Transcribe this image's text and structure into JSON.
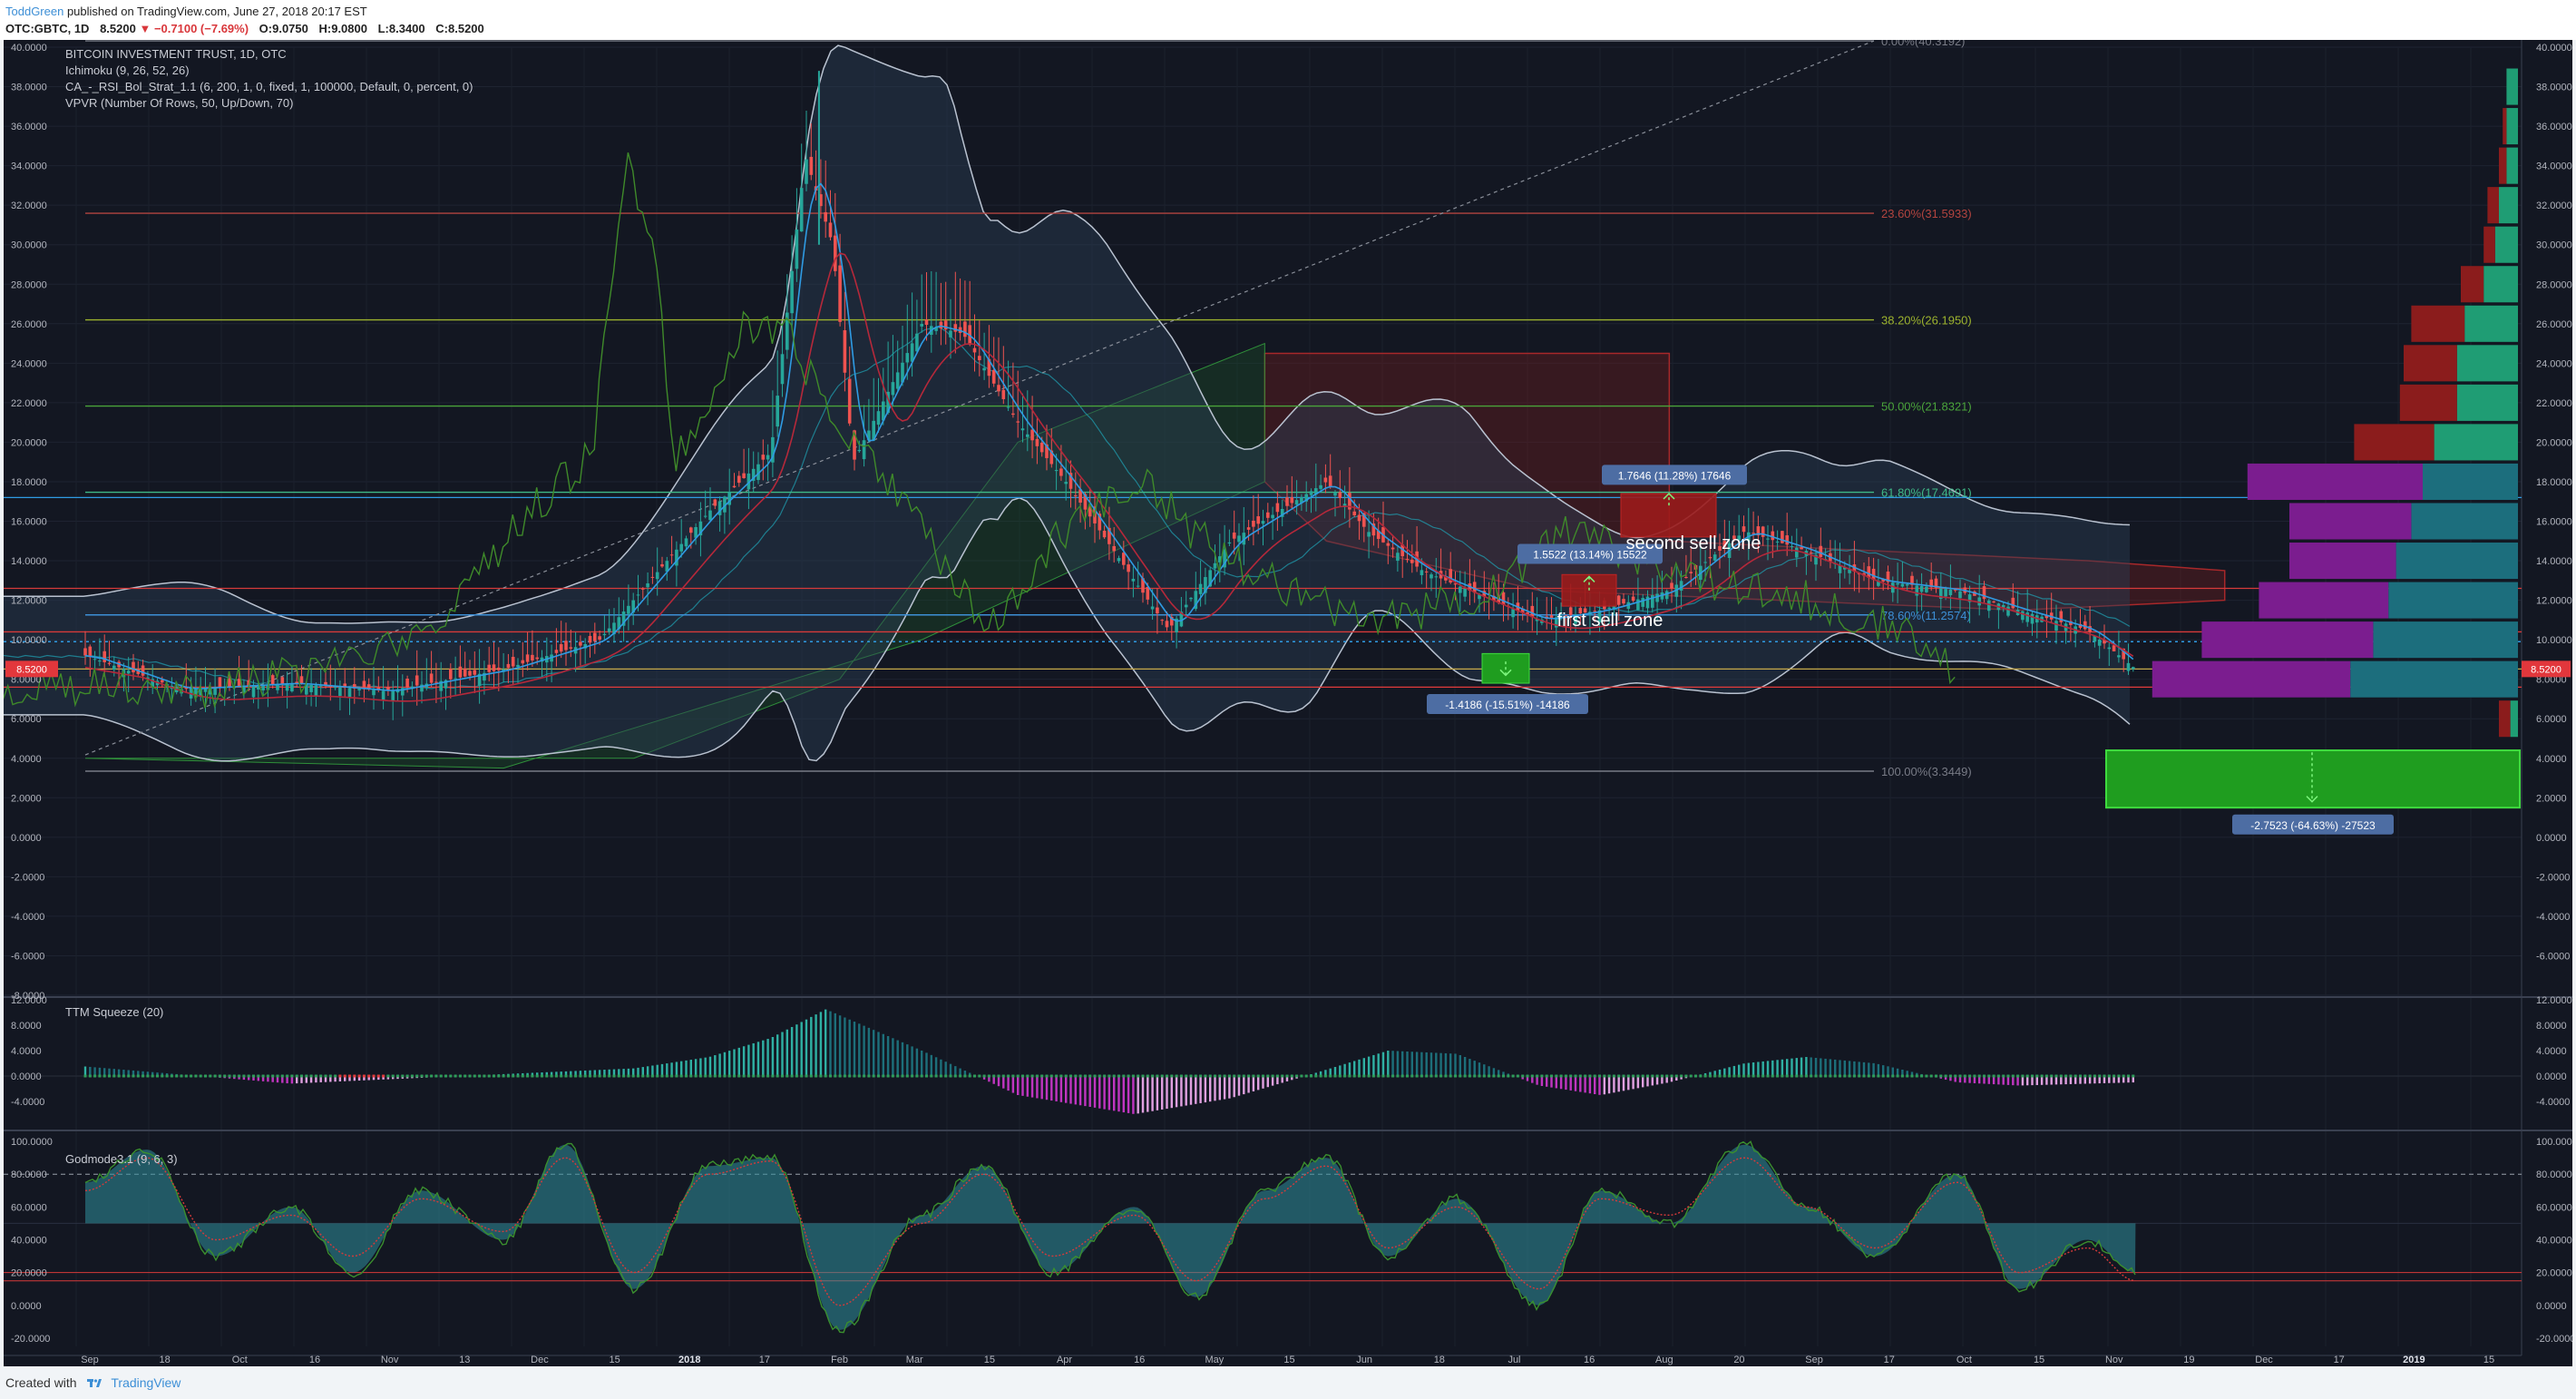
{
  "header": {
    "author": "ToddGreen",
    "published_text": "published on TradingView.com, June 27, 2018 20:17 EST",
    "symbol": "OTC:GBTC, 1D",
    "last": "8.5200",
    "change": "−0.7100 (−7.69%)",
    "open": "O:9.0750",
    "high": "H:9.0800",
    "low": "L:8.3400",
    "close": "C:8.5200"
  },
  "footer": {
    "created_with": "Created with",
    "brand": "TradingView"
  },
  "colors": {
    "background": "#131722",
    "up": "#26a69a",
    "down": "#ef5350",
    "fib_0": "#787b86",
    "fib_236": "#b2443f",
    "fib_382": "#9cb22e",
    "fib_50": "#4aa33b",
    "fib_618": "#3fb987",
    "fib_786": "#3d8fd6",
    "fib_100": "#787b86",
    "target": "#1f9d1f",
    "sell_zone": "#9b1b1b",
    "tenkan": "#2f9be3",
    "kijun": "#b5283a",
    "ttm_pos": "#2fb0a3",
    "ttm_neg": "#c035c0",
    "vp_up": "#1f9d74",
    "vp_down": "#8b1c1c",
    "vp_va_up": "#1c6e7d",
    "vp_va_down": "#7b1d8f"
  },
  "chart_data": [
    {
      "type": "candlestick",
      "title": "BITCOIN INVESTMENT TRUST, 1D, OTC",
      "indicators": [
        "Ichimoku (9, 26, 52, 26)",
        "CA_-_RSI_Bol_Strat_1.1 (6, 200, 1, 0, fixed, 1, 100000, Default, 0, percent, 0)",
        "VPVR (Number Of Rows, 50, Up/Down, 70)"
      ],
      "y_ticks": [
        "40.0000",
        "38.0000",
        "36.0000",
        "34.0000",
        "32.0000",
        "30.0000",
        "28.0000",
        "26.0000",
        "24.0000",
        "22.0000",
        "20.0000",
        "18.0000",
        "16.0000",
        "14.0000",
        "12.0000",
        "10.0000",
        "8.0000",
        "6.0000",
        "4.0000",
        "2.0000",
        "0.0000",
        "-2.0000",
        "-4.0000",
        "-6.0000",
        "-8.0000"
      ],
      "ylim": [
        -8,
        40
      ],
      "last_price_label": "8.5200",
      "x_ticks": [
        "Sep",
        "18",
        "Oct",
        "16",
        "Nov",
        "13",
        "Dec",
        "15",
        "2018",
        "17",
        "Feb",
        "Mar",
        "15",
        "Apr",
        "16",
        "May",
        "15",
        "Jun",
        "18",
        "Jul",
        "16",
        "Aug",
        "20",
        "Sep",
        "17",
        "Oct",
        "15",
        "Nov",
        "19",
        "Dec",
        "17",
        "2019",
        "15"
      ],
      "series": [
        {
          "name": "GBTC close",
          "x": [
            "2017-09-01",
            "2017-09-15",
            "2017-10-01",
            "2017-10-15",
            "2017-11-01",
            "2017-11-15",
            "2017-12-01",
            "2017-12-10",
            "2017-12-15",
            "2017-12-19",
            "2017-12-22",
            "2018-01-01",
            "2018-01-07",
            "2018-01-15",
            "2018-01-22",
            "2018-02-01",
            "2018-02-06",
            "2018-02-15",
            "2018-03-01",
            "2018-03-07",
            "2018-03-15",
            "2018-04-01",
            "2018-04-10",
            "2018-04-20",
            "2018-05-01",
            "2018-05-10",
            "2018-05-20",
            "2018-06-01",
            "2018-06-10",
            "2018-06-20",
            "2018-06-27"
          ],
          "values": [
            9.2,
            7.5,
            7.8,
            7.4,
            8.5,
            10.0,
            16.5,
            19.5,
            34.5,
            30.0,
            19.0,
            26.0,
            25.5,
            21.0,
            18.0,
            13.0,
            10.5,
            15.0,
            18.0,
            15.5,
            13.5,
            11.0,
            11.5,
            12.5,
            15.5,
            14.5,
            13.0,
            12.5,
            11.5,
            10.5,
            8.52
          ]
        }
      ],
      "fibonacci": [
        {
          "label": "0.00%(40.3192)",
          "value": 40.3192
        },
        {
          "label": "23.60%(31.5933)",
          "value": 31.5933
        },
        {
          "label": "38.20%(26.1950)",
          "value": 26.195
        },
        {
          "label": "50.00%(21.8321)",
          "value": 21.8321
        },
        {
          "label": "61.80%(17.4691)",
          "value": 17.4691
        },
        {
          "label": "78.60%(11.2574)",
          "value": 11.2574
        },
        {
          "label": "100.00%(3.3449)",
          "value": 3.3449
        }
      ],
      "annotations": [
        {
          "text": "second sell zone",
          "range": [
            15.0,
            17.5
          ]
        },
        {
          "text": "first sell zone",
          "range": [
            11.5,
            13.0
          ]
        },
        {
          "text": "1.7646 (11.28%) 17646",
          "change": 1.7646
        },
        {
          "text": "1.5522 (13.14%) 15522",
          "change": 1.5522
        },
        {
          "text": "-1.4186 (-15.51%) -14186",
          "change": -1.4186
        },
        {
          "text": "-2.7523 (-64.63%) -27523",
          "change": -2.7523
        }
      ]
    },
    {
      "type": "bar",
      "title": "TTM Squeeze (20)",
      "y_ticks": [
        "12.0000",
        "8.0000",
        "4.0000",
        "0.0000",
        "-4.0000"
      ],
      "ylim": [
        -8,
        12
      ],
      "x": [
        "2017-09-01",
        "2017-10-01",
        "2017-11-01",
        "2017-11-20",
        "2017-12-01",
        "2017-12-10",
        "2017-12-18",
        "2018-01-01",
        "2018-01-15",
        "2018-02-01",
        "2018-02-15",
        "2018-03-01",
        "2018-03-10",
        "2018-03-20",
        "2018-04-01",
        "2018-04-10",
        "2018-04-20",
        "2018-05-01",
        "2018-05-10",
        "2018-05-20",
        "2018-06-01",
        "2018-06-10",
        "2018-06-27"
      ],
      "values": [
        1.5,
        -1.2,
        0.3,
        1.2,
        3.0,
        6.0,
        10.5,
        4.0,
        -3.0,
        -6.0,
        -3.5,
        1.0,
        4.0,
        3.5,
        -1.5,
        -3.0,
        -1.0,
        2.0,
        3.0,
        2.0,
        -1.0,
        -1.5,
        -1.0
      ]
    },
    {
      "type": "line",
      "title": "Godmode3.1 (9, 6, 3)",
      "y_ticks": [
        "100.0000",
        "80.0000",
        "60.0000",
        "40.0000",
        "20.0000",
        "0.0000",
        "-20.0000"
      ],
      "ylim": [
        -25,
        105
      ],
      "levels": [
        80,
        20,
        15
      ],
      "x": [
        "2017-09-01",
        "2017-09-10",
        "2017-09-20",
        "2017-10-01",
        "2017-10-10",
        "2017-10-20",
        "2017-11-01",
        "2017-11-10",
        "2017-11-20",
        "2017-12-01",
        "2017-12-10",
        "2017-12-20",
        "2018-01-01",
        "2018-01-10",
        "2018-01-20",
        "2018-02-01",
        "2018-02-10",
        "2018-02-20",
        "2018-03-01",
        "2018-03-10",
        "2018-03-20",
        "2018-04-01",
        "2018-04-10",
        "2018-04-20",
        "2018-05-01",
        "2018-05-10",
        "2018-05-20",
        "2018-06-01",
        "2018-06-10",
        "2018-06-20",
        "2018-06-27"
      ],
      "series": [
        {
          "values": [
            75,
            95,
            30,
            60,
            20,
            70,
            40,
            98,
            10,
            85,
            90,
            -15,
            55,
            85,
            20,
            60,
            5,
            70,
            90,
            30,
            65,
            0,
            70,
            50,
            98,
            60,
            30,
            80,
            10,
            40,
            20
          ]
        },
        {
          "values": [
            70,
            90,
            40,
            55,
            30,
            65,
            45,
            90,
            20,
            80,
            88,
            0,
            50,
            80,
            30,
            55,
            15,
            65,
            85,
            35,
            60,
            10,
            65,
            55,
            90,
            60,
            35,
            75,
            20,
            35,
            15
          ]
        }
      ]
    }
  ],
  "volume_profile": {
    "buckets": [
      {
        "price": 38.0,
        "up": 0.03,
        "down": 0.0
      },
      {
        "price": 36.0,
        "up": 0.03,
        "down": 0.01
      },
      {
        "price": 34.0,
        "up": 0.03,
        "down": 0.02
      },
      {
        "price": 32.0,
        "up": 0.05,
        "down": 0.03
      },
      {
        "price": 30.0,
        "up": 0.06,
        "down": 0.03
      },
      {
        "price": 28.0,
        "up": 0.09,
        "down": 0.06
      },
      {
        "price": 26.0,
        "up": 0.14,
        "down": 0.14
      },
      {
        "price": 24.0,
        "up": 0.16,
        "down": 0.14
      },
      {
        "price": 22.0,
        "up": 0.16,
        "down": 0.15
      },
      {
        "price": 20.0,
        "up": 0.22,
        "down": 0.21
      },
      {
        "price": 18.0,
        "up": 0.25,
        "down": 0.46
      },
      {
        "price": 16.0,
        "up": 0.28,
        "down": 0.32
      },
      {
        "price": 14.0,
        "up": 0.32,
        "down": 0.28
      },
      {
        "price": 12.0,
        "up": 0.34,
        "down": 0.34
      },
      {
        "price": 10.0,
        "up": 0.38,
        "down": 0.45
      },
      {
        "price": 8.0,
        "up": 0.44,
        "down": 0.52
      },
      {
        "price": 6.0,
        "up": 0.02,
        "down": 0.03
      }
    ]
  }
}
